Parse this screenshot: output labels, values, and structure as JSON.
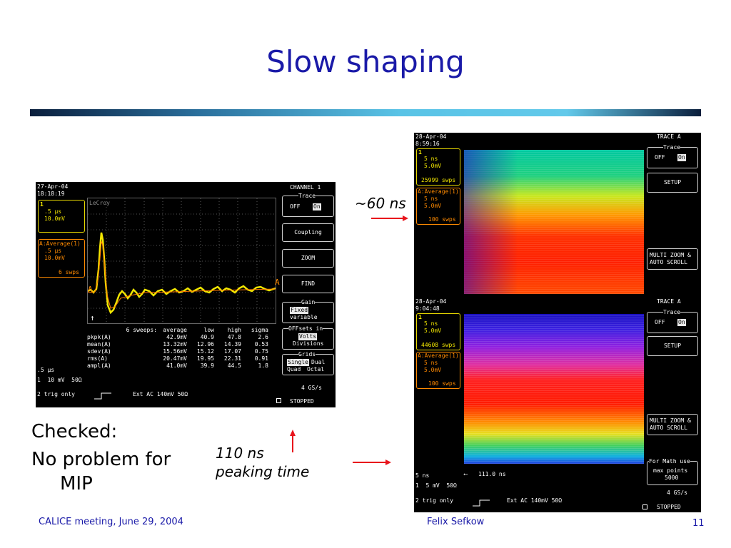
{
  "slide": {
    "title": "Slow shaping",
    "bullets": [
      "Checked:",
      "No problem for",
      "MIP"
    ],
    "annotation_60ns": "~60 ns",
    "annotation_110ns_line1": "110 ns",
    "annotation_110ns_line2": "peaking time",
    "footer_left": "CALICE meeting, June 29, 2004",
    "footer_center": "Felix Sefkow",
    "page_number": "11",
    "accent_color": "#1a1aa8",
    "arrow_color": "#e8141c"
  },
  "scope_left": {
    "date": "27-Apr-04",
    "time": "18:18:19",
    "ch1_box": {
      "label": "1",
      "timebase": ".5 µs",
      "volts": "10.0mV"
    },
    "avg_box": {
      "label": "A:Average(1)",
      "timebase": ".5 µs",
      "volts": "10.0mV",
      "sweeps": "6 swps"
    },
    "brand": "LeCroy",
    "menu": {
      "header": "CHANNEL 1",
      "trace_label": "Trace",
      "trace_off": "OFF",
      "trace_on": "On",
      "coupling": "Coupling",
      "zoom": "ZOOM",
      "find": "FIND",
      "gain_label": "Gain",
      "gain_fixed": "Fixed",
      "gain_variable": "variable",
      "offsets_label": "OFFsets in",
      "offsets_volts": "Volts",
      "offsets_divisions": "Divisions",
      "grids_label": "Grids",
      "grids_single": "Single",
      "grids_dual": "Dual",
      "grids_quad": "Quad",
      "grids_octal": "Octal",
      "sample_rate": "4 GS/s",
      "status": "STOPPED"
    },
    "stats": {
      "header": [
        "6 sweeps:",
        "average",
        "low",
        "high",
        "sigma"
      ],
      "rows": [
        [
          "pkpk(A)",
          "42.9mV",
          "40.9",
          "47.8",
          "2.6"
        ],
        [
          "mean(A)",
          "13.32mV",
          "12.96",
          "14.39",
          "0.53"
        ],
        [
          "sdev(A)",
          "15.56mV",
          "15.12",
          "17.07",
          "0.75"
        ],
        [
          "rms(A)",
          "20.47mV",
          "19.95",
          "22.31",
          "0.91"
        ],
        [
          "ampl(A)",
          "41.0mV",
          "39.9",
          "44.5",
          "1.8"
        ]
      ]
    },
    "timebase_bottom": ".5 µs",
    "ch1_scale": "1  10 mV  50Ω",
    "ch2_trig": "2 trig only",
    "trigger": "Ext AC 140mV 50Ω"
  },
  "scope_right": {
    "top": {
      "date": "28-Apr-04",
      "time": "8:59:16",
      "ch1_box": {
        "timebase": "5 ns",
        "volts": "5.0mV",
        "sweeps": "25999 swps"
      },
      "avg_box": {
        "label": "A:Average(1)",
        "timebase": "5 ns",
        "volts": "5.0mV",
        "sweeps": "100 swps"
      },
      "menu_header": "TRACE A",
      "trace_label": "Trace",
      "trace_off": "OFF",
      "trace_on": "On",
      "setup": "SETUP",
      "multizoom_1": "MULTI ZOOM &",
      "multizoom_2": "AUTO SCROLL"
    },
    "bottom": {
      "date": "28-Apr-04",
      "time": "9:04:48",
      "ch1_box": {
        "timebase": "5 ns",
        "volts": "5.0mV",
        "sweeps": "44608 swps"
      },
      "avg_box": {
        "label": "A:Average(1)",
        "timebase": "5 ns",
        "volts": "5.0mV",
        "sweeps": "100 swps"
      },
      "menu_header": "TRACE A",
      "trace_label": "Trace",
      "trace_off": "OFF",
      "trace_on": "On",
      "setup": "SETUP",
      "multizoom_1": "MULTI ZOOM &",
      "multizoom_2": "AUTO SCROLL",
      "math_1": "For Math use",
      "math_2": "max points",
      "math_3": "5000",
      "timebase_bottom": "5 ns",
      "cursor": "111.0 ns",
      "ch1_scale": "1  5 mV  50Ω",
      "ch2_trig": "2 trig only",
      "trigger": "Ext AC 140mV 50Ω",
      "sample_rate": "4 GS/s",
      "status": "STOPPED"
    }
  }
}
